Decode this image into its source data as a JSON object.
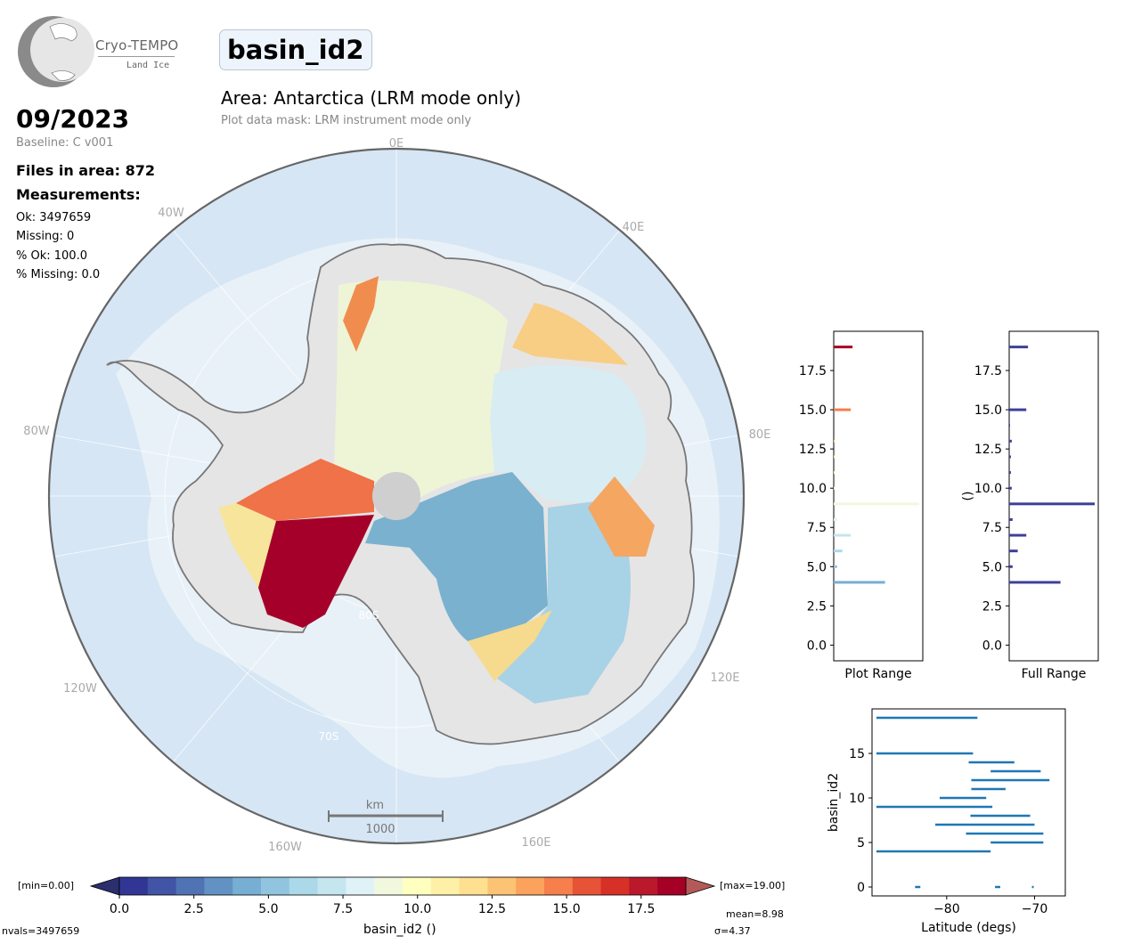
{
  "header": {
    "logo_name": "Cryo-TEMPO",
    "logo_sub": "Land Ice",
    "parameter": "basin_id2",
    "area_title": "Area: Antarctica (LRM mode only)",
    "mask_text": "Plot data mask: LRM instrument mode only"
  },
  "stats": {
    "date": "09/2023",
    "baseline": "Baseline: C v001",
    "files": "Files in area: 872",
    "measurements_heading": "Measurements:",
    "ok": "Ok: 3497659",
    "missing": "Missing: 0",
    "pct_ok": "% Ok: 100.0",
    "pct_missing": "% Missing: 0.0"
  },
  "map": {
    "lon_labels": [
      "0E",
      "40E",
      "80E",
      "120E",
      "160E",
      "160W",
      "120W",
      "80W",
      "40W"
    ],
    "lat_labels": [
      "70S",
      "80S"
    ],
    "scalebar_unit": "km",
    "scalebar_value": "1000",
    "ocean_color": "#d6e6f4",
    "ice_color": "#e8e8e8"
  },
  "colorbar": {
    "min_label": "[min=0.00]",
    "max_label": "[max=19.00]",
    "ticks": [
      "0.0",
      "2.5",
      "5.0",
      "7.5",
      "10.0",
      "12.5",
      "15.0",
      "17.5"
    ],
    "label": "basin_id2 ()",
    "mean": "mean=8.98",
    "sigma": "σ=4.37",
    "nvals": "nvals=3497659",
    "colors": [
      "#313695",
      "#4154a5",
      "#4f73b3",
      "#6192c3",
      "#77aed3",
      "#91c4de",
      "#abd9e9",
      "#c5e5ef",
      "#dff2f7",
      "#f0f9dd",
      "#ffffbf",
      "#fff0a7",
      "#fee090",
      "#fdc374",
      "#fba35c",
      "#f67f4b",
      "#e75337",
      "#d73027",
      "#b9192b",
      "#a50026"
    ]
  },
  "chart_data": [
    {
      "type": "bar",
      "orientation": "horizontal",
      "xlabel": "Plot Range",
      "ylabel": "",
      "ylim": [
        -1,
        20
      ],
      "yticks": [
        "0.0",
        "2.5",
        "5.0",
        "7.5",
        "10.0",
        "12.5",
        "15.0",
        "17.5"
      ],
      "categories": [
        4,
        5,
        6,
        7,
        8,
        9,
        10,
        11,
        12,
        13,
        15,
        19
      ],
      "values": [
        0.6,
        0.04,
        0.1,
        0.2,
        0.04,
        1.0,
        0.01,
        0.01,
        0.01,
        0.01,
        0.2,
        0.22
      ]
    },
    {
      "type": "bar",
      "orientation": "horizontal",
      "xlabel": "Full Range",
      "ylabel": "()",
      "ylim": [
        -1,
        20
      ],
      "yticks": [
        "0.0",
        "2.5",
        "5.0",
        "7.5",
        "10.0",
        "12.5",
        "15.0",
        "17.5"
      ],
      "categories": [
        4,
        5,
        6,
        7,
        8,
        9,
        10,
        11,
        12,
        13,
        14,
        15,
        19
      ],
      "values": [
        0.6,
        0.04,
        0.1,
        0.2,
        0.04,
        1.0,
        0.03,
        0.02,
        0.02,
        0.03,
        0.01,
        0.2,
        0.22
      ],
      "color": "#3f3f9a"
    },
    {
      "type": "range",
      "xlabel": "Latitude (degs)",
      "ylabel": "basin_id2",
      "xlim": [
        -88.5,
        -66.5
      ],
      "ylim": [
        -1,
        20
      ],
      "xticks": [
        "−80",
        "−70"
      ],
      "yticks": [
        "0",
        "5",
        "10",
        "15"
      ],
      "color": "#1f77b4",
      "segments": [
        {
          "id": 19,
          "lat_min": -88.0,
          "lat_max": -76.5
        },
        {
          "id": 15,
          "lat_min": -88.0,
          "lat_max": -77.0
        },
        {
          "id": 14,
          "lat_min": -77.5,
          "lat_max": -72.3
        },
        {
          "id": 13,
          "lat_min": -75.0,
          "lat_max": -69.3
        },
        {
          "id": 12,
          "lat_min": -77.2,
          "lat_max": -68.3
        },
        {
          "id": 11,
          "lat_min": -77.2,
          "lat_max": -73.3
        },
        {
          "id": 10,
          "lat_min": -80.8,
          "lat_max": -75.5
        },
        {
          "id": 9,
          "lat_min": -88.0,
          "lat_max": -74.8
        },
        {
          "id": 8,
          "lat_min": -77.3,
          "lat_max": -70.5
        },
        {
          "id": 7,
          "lat_min": -81.3,
          "lat_max": -70.0
        },
        {
          "id": 6,
          "lat_min": -77.8,
          "lat_max": -69.0
        },
        {
          "id": 5,
          "lat_min": -75.0,
          "lat_max": -69.0
        },
        {
          "id": 4,
          "lat_min": -88.0,
          "lat_max": -75.0
        },
        {
          "id": 0,
          "lat_min": -83.6,
          "lat_max": -83.0
        },
        {
          "id": 0,
          "lat_min": -74.5,
          "lat_max": -73.9
        },
        {
          "id": 0,
          "lat_min": -70.3,
          "lat_max": -70.1
        }
      ]
    }
  ]
}
